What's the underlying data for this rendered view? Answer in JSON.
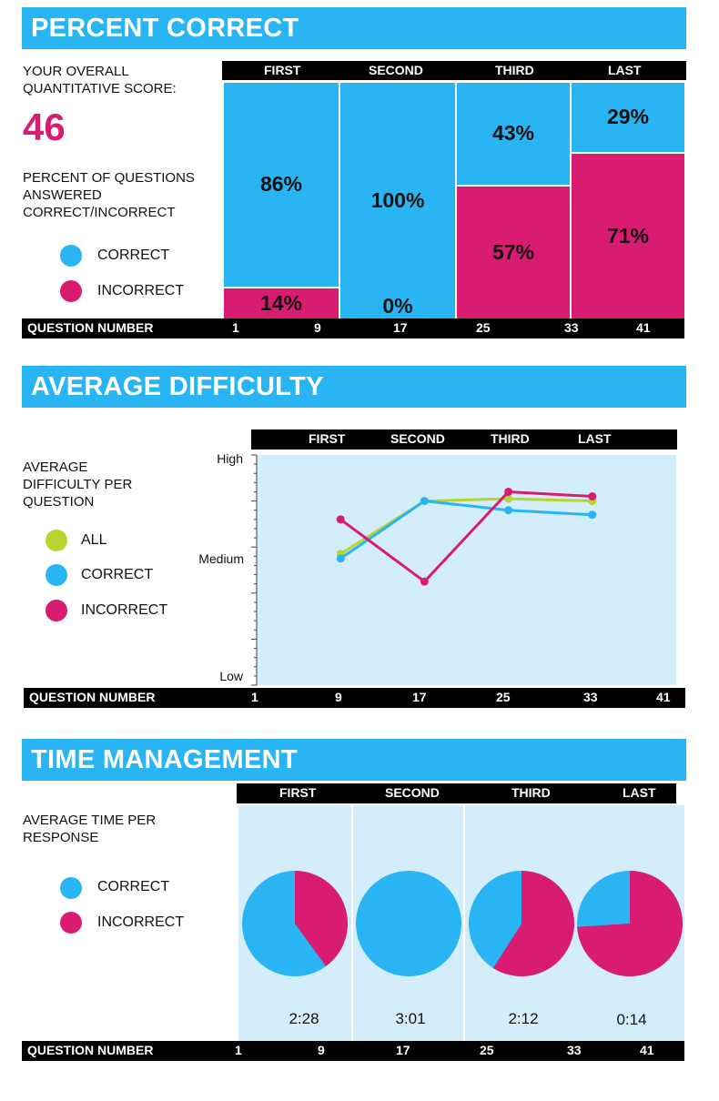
{
  "colors": {
    "banner": "#29b5f3",
    "correct": "#29b5f3",
    "incorrect": "#d91b72",
    "all": "#b8d430",
    "plot_bg": "#d3eefa",
    "bar": "#000000"
  },
  "quarters": [
    "FIRST",
    "SECOND",
    "THIRD",
    "LAST"
  ],
  "question_number_label": "QUESTION  NUMBER",
  "question_numbers": [
    "1",
    "9",
    "17",
    "25",
    "33",
    "41"
  ],
  "legend": {
    "all": "ALL",
    "correct": "CORRECT",
    "incorrect": "INCORRECT"
  },
  "percent": {
    "title": "PERCENT CORRECT",
    "score_label_1": "YOUR OVERALL",
    "score_label_2": "QUANTITATIVE SCORE:",
    "score": "46",
    "desc_1": "PERCENT OF QUESTIONS",
    "desc_2": "ANSWERED",
    "desc_3": "CORRECT/INCORRECT",
    "correct_labels": [
      "86%",
      "100%",
      "43%",
      "29%"
    ],
    "incorrect_labels": [
      "14%",
      "0%",
      "57%",
      "71%"
    ]
  },
  "difficulty": {
    "title": "AVERAGE DIFFICULTY",
    "desc_1": "AVERAGE",
    "desc_2": "DIFFICULTY PER",
    "desc_3": "QUESTION",
    "y_high": "High",
    "y_medium": "Medium",
    "y_low": "Low"
  },
  "time": {
    "title": "TIME MANAGEMENT",
    "desc_1": "AVERAGE TIME PER",
    "desc_2": "RESPONSE",
    "times": [
      "2:28",
      "3:01",
      "2:12",
      "0:14"
    ]
  },
  "chart_data": [
    {
      "type": "bar",
      "title": "PERCENT CORRECT",
      "categories": [
        "FIRST",
        "SECOND",
        "THIRD",
        "LAST"
      ],
      "series": [
        {
          "name": "CORRECT",
          "values": [
            86,
            100,
            43,
            29
          ]
        },
        {
          "name": "INCORRECT",
          "values": [
            14,
            0,
            57,
            71
          ]
        }
      ],
      "stacked": true,
      "ylim": [
        0,
        100
      ],
      "xlabel": "QUESTION  NUMBER"
    },
    {
      "type": "line",
      "title": "AVERAGE DIFFICULTY",
      "x": [
        9,
        17,
        25,
        33
      ],
      "series": [
        {
          "name": "ALL",
          "values": [
            0.57,
            0.8,
            0.81,
            0.8
          ]
        },
        {
          "name": "CORRECT",
          "values": [
            0.55,
            0.8,
            0.76,
            0.74
          ]
        },
        {
          "name": "INCORRECT",
          "values": [
            0.72,
            0.45,
            0.84,
            0.82
          ]
        }
      ],
      "ylim": [
        0,
        1
      ],
      "yticks": [
        "Low",
        "Medium",
        "High"
      ],
      "xlim": [
        1,
        41
      ],
      "xlabel": "QUESTION  NUMBER"
    },
    {
      "type": "pie",
      "title": "TIME MANAGEMENT",
      "categories": [
        "FIRST",
        "SECOND",
        "THIRD",
        "LAST"
      ],
      "correct_fraction": [
        0.6,
        1.0,
        0.41,
        0.26
      ],
      "incorrect_fraction": [
        0.4,
        0.0,
        0.59,
        0.74
      ],
      "labels": [
        "2:28",
        "3:01",
        "2:12",
        "0:14"
      ],
      "xlabel": "QUESTION  NUMBER"
    }
  ]
}
